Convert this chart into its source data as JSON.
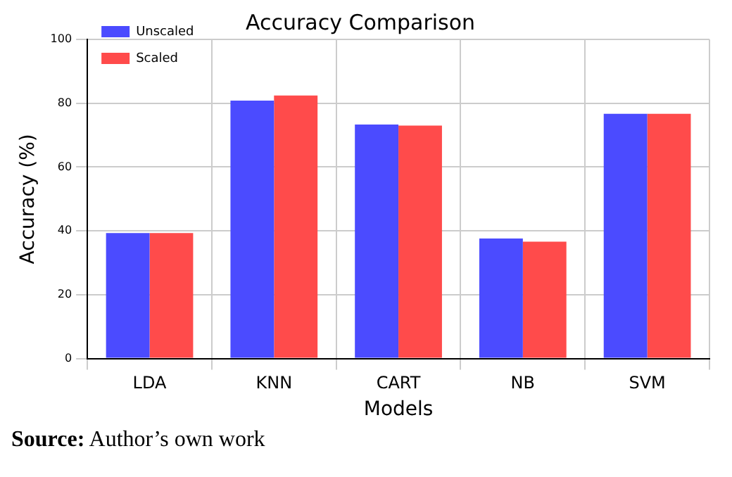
{
  "chart_data": {
    "type": "bar",
    "title": "Accuracy Comparison",
    "xlabel": "Models",
    "ylabel": "Accuracy (%)",
    "categories": [
      "LDA",
      "KNN",
      "CART",
      "NB",
      "SVM"
    ],
    "series": [
      {
        "name": "Unscaled",
        "color": "#4b4bff",
        "values": [
          39.3,
          80.8,
          73.3,
          37.6,
          76.7
        ]
      },
      {
        "name": "Scaled",
        "color": "#ff4b4b",
        "values": [
          39.3,
          82.4,
          73.0,
          36.6,
          76.7
        ]
      }
    ],
    "ylim": [
      0,
      100
    ],
    "yticks": [
      0,
      20,
      40,
      60,
      80,
      100
    ],
    "grid": true,
    "legend": "top left",
    "annotations": [
      "Source: Author’s own work"
    ]
  }
}
